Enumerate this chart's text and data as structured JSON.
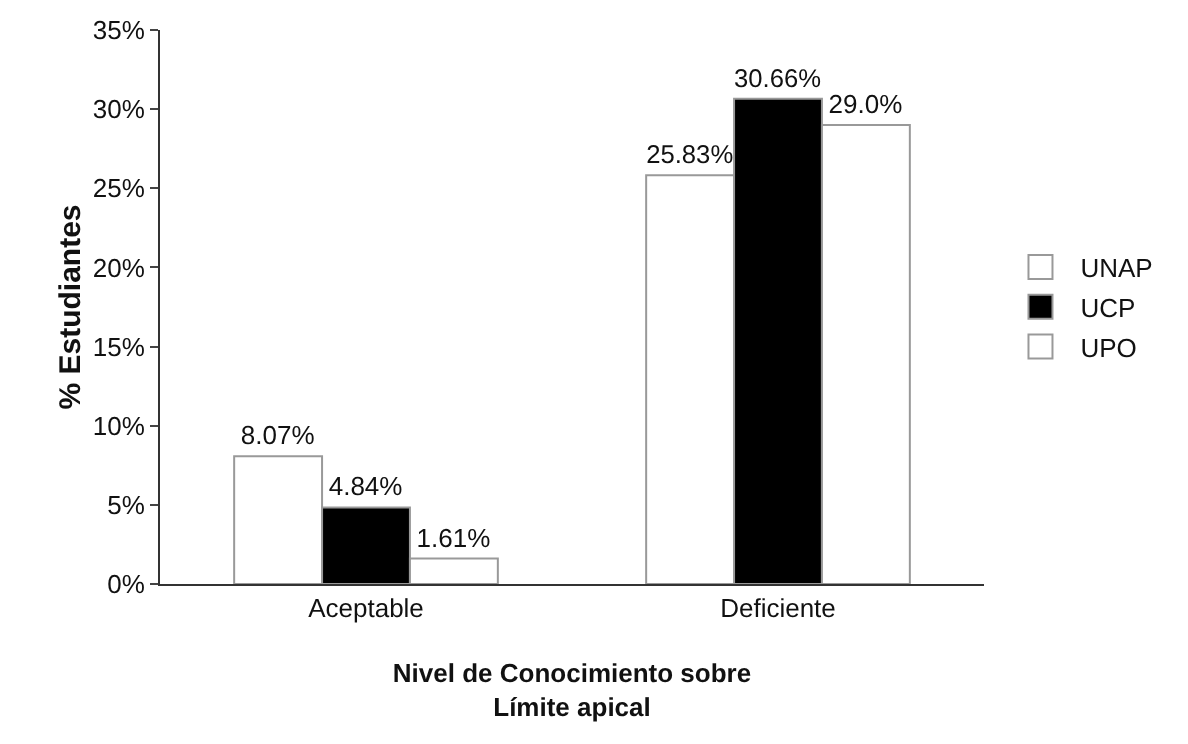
{
  "chart_data": {
    "type": "bar",
    "categories": [
      "Aceptable",
      "Deficiente"
    ],
    "xlabel": "Nivel de Conocimiento sobre\nLímite apical",
    "ylabel": "% Estudiantes",
    "series": [
      {
        "name": "UNAP",
        "color": "#ffffff",
        "values": [
          8.07,
          25.83
        ],
        "value_labels": [
          "8.07%",
          "25.83%"
        ]
      },
      {
        "name": "UCP",
        "color": "#000000",
        "values": [
          4.84,
          30.66
        ],
        "value_labels": [
          "4.84%",
          "30.66%"
        ]
      },
      {
        "name": "UPO",
        "color": "#ffffff",
        "values": [
          1.61,
          29.0
        ],
        "value_labels": [
          "1.61%",
          "29.0%"
        ]
      }
    ],
    "ylim": [
      0,
      35
    ],
    "yticks": [
      {
        "value": 0,
        "label": "0%"
      },
      {
        "value": 5,
        "label": "5%"
      },
      {
        "value": 10,
        "label": "10%"
      },
      {
        "value": 15,
        "label": "15%"
      },
      {
        "value": 20,
        "label": "20%"
      },
      {
        "value": 25,
        "label": "25%"
      },
      {
        "value": 30,
        "label": "30%"
      },
      {
        "value": 35,
        "label": "35%"
      }
    ],
    "grid": false,
    "legend": "right"
  }
}
